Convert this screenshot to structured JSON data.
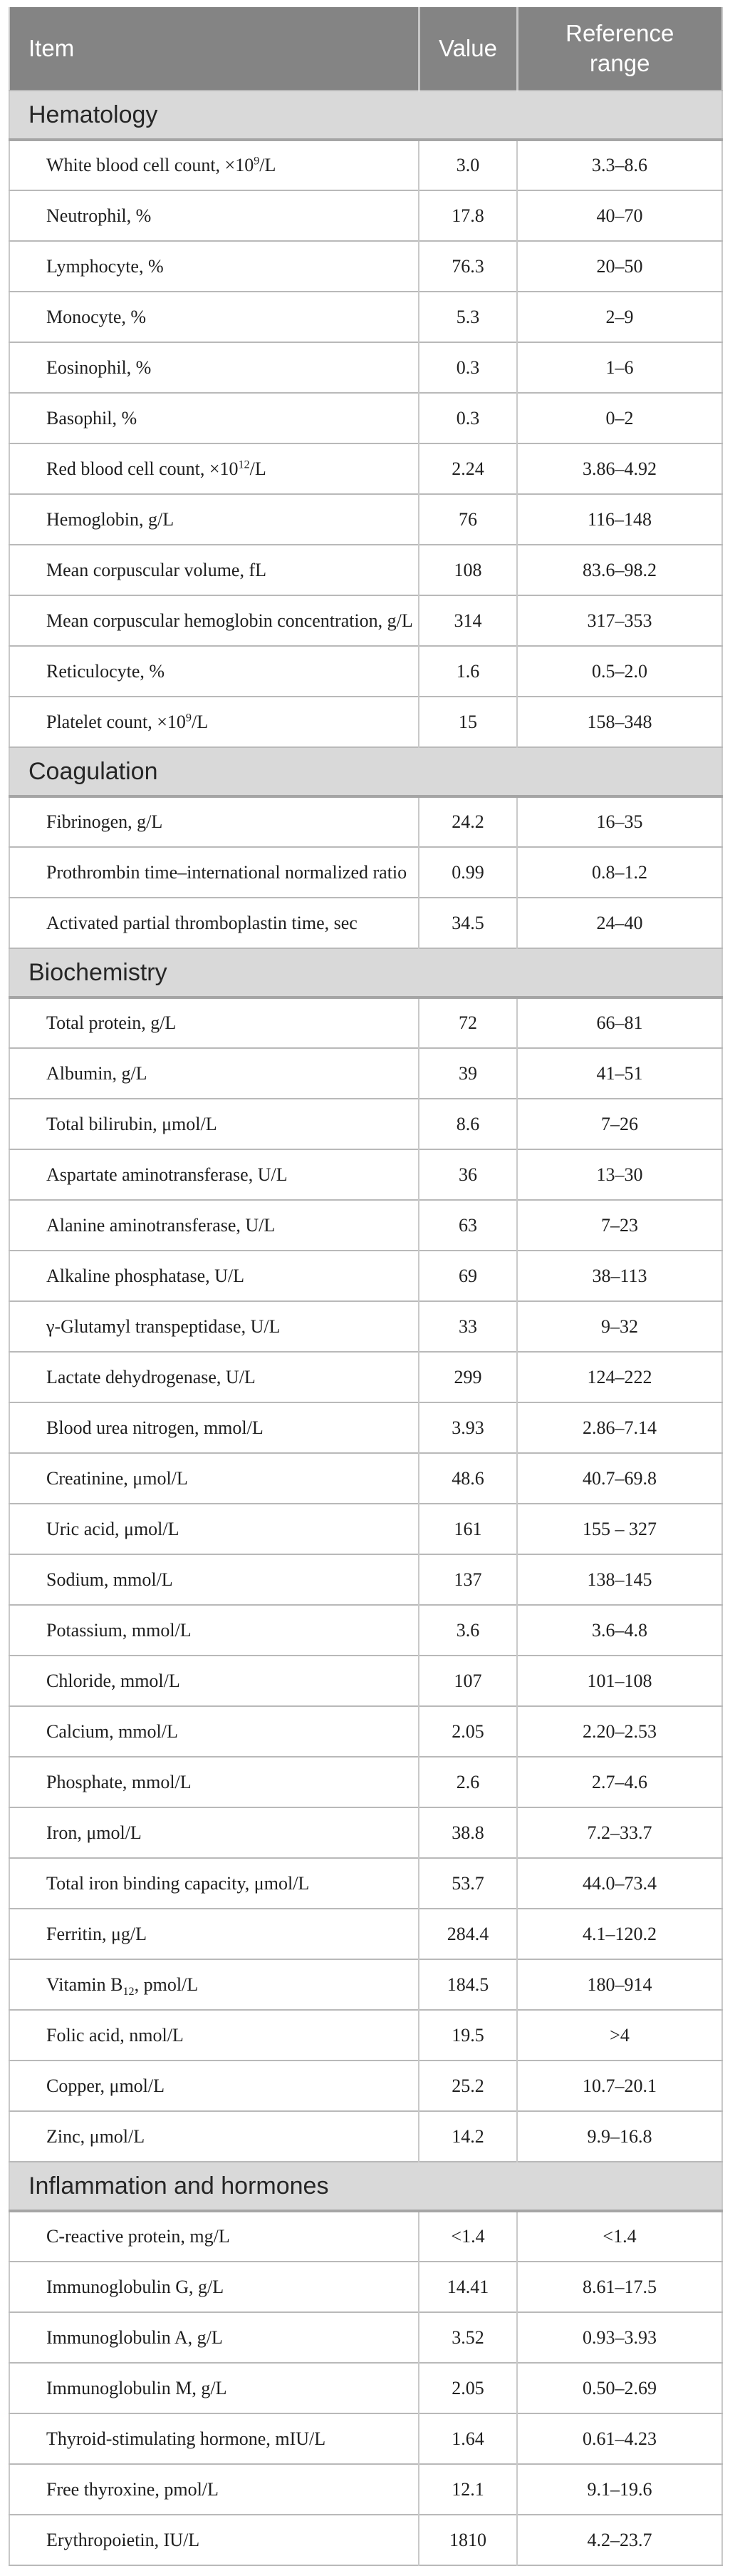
{
  "colors": {
    "header_bg": "#848484",
    "header_text": "#ffffff",
    "section_bg": "#d9d9d9",
    "section_text": "#262626",
    "body_text": "#1f1f1f",
    "row_border": "#b9b9b9",
    "col_border": "#c9c9c9",
    "section_underline": "#a5a5a5",
    "page_bg": "#ffffff"
  },
  "table": {
    "columns": [
      "Item",
      "Value",
      "Reference range"
    ],
    "sections": [
      {
        "title": "Hematology",
        "rows": [
          {
            "item": "White blood cell count, ×10^{9}/L",
            "value": "3.0",
            "range": "3.3–8.6"
          },
          {
            "item": "Neutrophil, %",
            "value": "17.8",
            "range": "40–70"
          },
          {
            "item": "Lymphocyte, %",
            "value": "76.3",
            "range": "20–50"
          },
          {
            "item": "Monocyte, %",
            "value": "5.3",
            "range": "2–9"
          },
          {
            "item": "Eosinophil, %",
            "value": "0.3",
            "range": "1–6"
          },
          {
            "item": "Basophil, %",
            "value": "0.3",
            "range": "0–2"
          },
          {
            "item": "Red blood cell count, ×10^{12}/L",
            "value": "2.24",
            "range": "3.86–4.92"
          },
          {
            "item": "Hemoglobin, g/L",
            "value": "76",
            "range": "116–148"
          },
          {
            "item": "Mean corpuscular volume, fL",
            "value": "108",
            "range": "83.6–98.2"
          },
          {
            "item": "Mean corpuscular hemoglobin concentration, g/L",
            "value": "314",
            "range": "317–353"
          },
          {
            "item": "Reticulocyte, %",
            "value": "1.6",
            "range": "0.5–2.0"
          },
          {
            "item": "Platelet count, ×10^{9}/L",
            "value": "15",
            "range": "158–348"
          }
        ]
      },
      {
        "title": "Coagulation",
        "rows": [
          {
            "item": "Fibrinogen, g/L",
            "value": "24.2",
            "range": "16–35"
          },
          {
            "item": "Prothrombin time–international normalized ratio",
            "value": "0.99",
            "range": "0.8–1.2"
          },
          {
            "item": "Activated partial thromboplastin time, sec",
            "value": "34.5",
            "range": "24–40"
          }
        ]
      },
      {
        "title": "Biochemistry",
        "rows": [
          {
            "item": "Total protein, g/L",
            "value": "72",
            "range": "66–81"
          },
          {
            "item": "Albumin, g/L",
            "value": "39",
            "range": "41–51"
          },
          {
            "item": "Total bilirubin, μmol/L",
            "value": "8.6",
            "range": "7–26"
          },
          {
            "item": "Aspartate aminotransferase, U/L",
            "value": "36",
            "range": "13–30"
          },
          {
            "item": "Alanine aminotransferase, U/L",
            "value": "63",
            "range": "7–23"
          },
          {
            "item": "Alkaline phosphatase, U/L",
            "value": "69",
            "range": "38–113"
          },
          {
            "item": "γ-Glutamyl transpeptidase, U/L",
            "value": "33",
            "range": "9–32"
          },
          {
            "item": "Lactate dehydrogenase, U/L",
            "value": "299",
            "range": "124–222"
          },
          {
            "item": "Blood urea nitrogen, mmol/L",
            "value": "3.93",
            "range": "2.86–7.14"
          },
          {
            "item": "Creatinine, μmol/L",
            "value": "48.6",
            "range": "40.7–69.8"
          },
          {
            "item": "Uric acid, μmol/L",
            "value": "161",
            "range": "155 – 327"
          },
          {
            "item": "Sodium, mmol/L",
            "value": "137",
            "range": "138–145"
          },
          {
            "item": "Potassium, mmol/L",
            "value": "3.6",
            "range": "3.6–4.8"
          },
          {
            "item": "Chloride, mmol/L",
            "value": "107",
            "range": "101–108"
          },
          {
            "item": "Calcium, mmol/L",
            "value": "2.05",
            "range": "2.20–2.53"
          },
          {
            "item": "Phosphate, mmol/L",
            "value": "2.6",
            "range": "2.7–4.6"
          },
          {
            "item": "Iron, μmol/L",
            "value": "38.8",
            "range": "7.2–33.7"
          },
          {
            "item": "Total iron binding capacity, μmol/L",
            "value": "53.7",
            "range": "44.0–73.4"
          },
          {
            "item": "Ferritin, μg/L",
            "value": "284.4",
            "range": "4.1–120.2"
          },
          {
            "item": "Vitamin B_{12}, pmol/L",
            "value": "184.5",
            "range": "180–914"
          },
          {
            "item": "Folic acid, nmol/L",
            "value": "19.5",
            "range": ">4"
          },
          {
            "item": "Copper, μmol/L",
            "value": "25.2",
            "range": "10.7–20.1"
          },
          {
            "item": "Zinc, μmol/L",
            "value": "14.2",
            "range": "9.9–16.8"
          }
        ]
      },
      {
        "title": "Inflammation and hormones",
        "rows": [
          {
            "item": "C-reactive protein, mg/L",
            "value": "<1.4",
            "range": "<1.4"
          },
          {
            "item": "Immunoglobulin G, g/L",
            "value": "14.41",
            "range": "8.61–17.5"
          },
          {
            "item": "Immunoglobulin A, g/L",
            "value": "3.52",
            "range": "0.93–3.93"
          },
          {
            "item": "Immunoglobulin M, g/L",
            "value": "2.05",
            "range": "0.50–2.69"
          },
          {
            "item": "Thyroid-stimulating hormone, mIU/L",
            "value": "1.64",
            "range": "0.61–4.23"
          },
          {
            "item": "Free thyroxine, pmol/L",
            "value": "12.1",
            "range": "9.1–19.6"
          },
          {
            "item": "Erythropoietin, IU/L",
            "value": "1810",
            "range": "4.2–23.7"
          }
        ]
      }
    ]
  }
}
